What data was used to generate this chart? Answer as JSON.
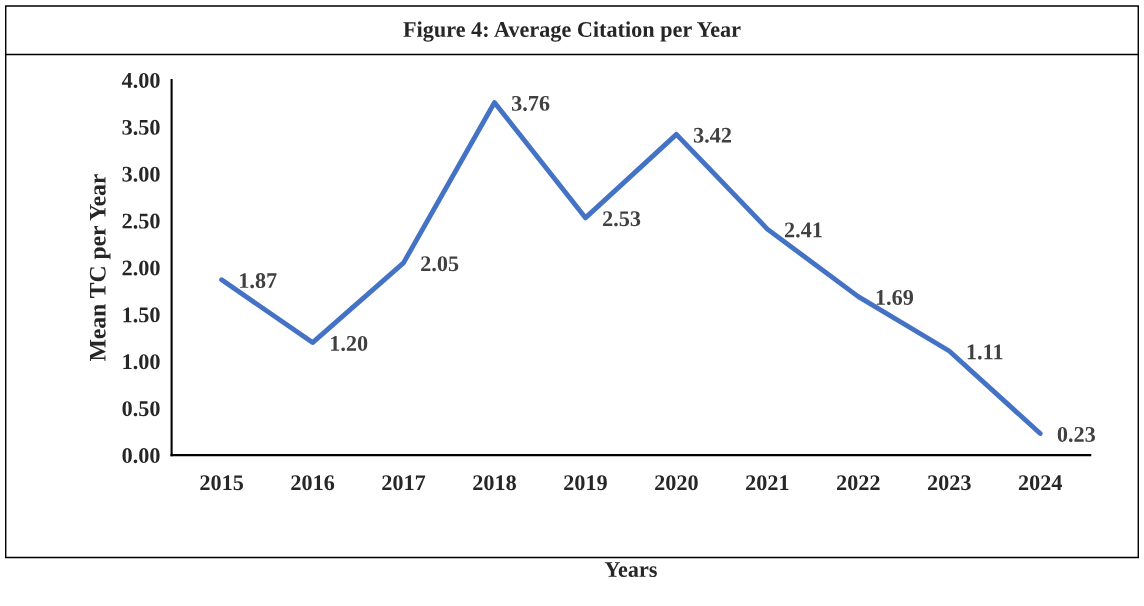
{
  "chart_data": {
    "type": "line",
    "title": "Figure 4: Average Citation per Year",
    "xlabel": "Years",
    "ylabel": "Mean TC per Year",
    "categories": [
      "2015",
      "2016",
      "2017",
      "2018",
      "2019",
      "2020",
      "2021",
      "2022",
      "2023",
      "2024"
    ],
    "values": [
      1.87,
      1.2,
      2.05,
      3.76,
      2.53,
      3.42,
      2.41,
      1.69,
      1.11,
      0.23
    ],
    "value_labels": [
      "1.87",
      "1.20",
      "2.05",
      "3.76",
      "2.53",
      "3.42",
      "2.41",
      "1.69",
      "1.11",
      "0.23"
    ],
    "color": "#4472c4",
    "ylim": [
      0,
      4
    ],
    "yticks": [
      {
        "value": 0,
        "label": "0.00"
      },
      {
        "value": 0.5,
        "label": "0.50"
      },
      {
        "value": 1,
        "label": "1.00"
      },
      {
        "value": 1.5,
        "label": "1.50"
      },
      {
        "value": 2,
        "label": "2.00"
      },
      {
        "value": 2.5,
        "label": "2.50"
      },
      {
        "value": 3,
        "label": "3.00"
      },
      {
        "value": 3.5,
        "label": "3.50"
      },
      {
        "value": 4,
        "label": "4.00"
      }
    ],
    "grid": false,
    "legend": false,
    "marker": "none",
    "line_style": "solid"
  }
}
